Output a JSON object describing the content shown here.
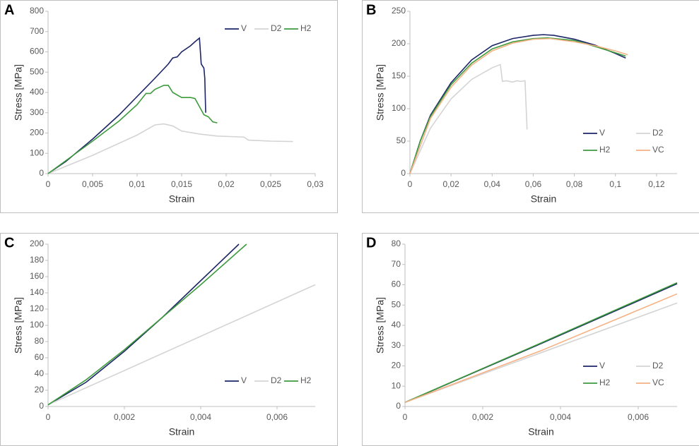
{
  "chart_data": [
    {
      "type": "line",
      "label": "A",
      "xlabel": "Strain",
      "ylabel": "Stress [MPa]",
      "xlim": [
        0,
        0.03
      ],
      "xticks": [
        0,
        {
          "value": 0.005,
          "label": "0,005"
        },
        {
          "value": 0.01,
          "label": "0,01"
        },
        {
          "value": 0.015,
          "label": "0,015"
        },
        {
          "value": 0.02,
          "label": "0,02"
        },
        {
          "value": 0.025,
          "label": "0,025"
        },
        {
          "value": 0.03,
          "label": "0,03"
        }
      ],
      "ylim": [
        0,
        800
      ],
      "yticks": [
        0,
        100,
        200,
        300,
        400,
        500,
        600,
        700,
        800
      ],
      "legend": "upper right",
      "series": [
        {
          "name": "V",
          "color": "#1c2566",
          "x": [
            0,
            0.002,
            0.005,
            0.008,
            0.01,
            0.012,
            0.0135,
            0.014,
            0.0145,
            0.015,
            0.016,
            0.0165,
            0.017,
            0.0172,
            0.0175,
            0.0176,
            0.0177
          ],
          "values": [
            0,
            60,
            170,
            290,
            380,
            470,
            540,
            570,
            575,
            600,
            630,
            650,
            668,
            540,
            520,
            470,
            300
          ]
        },
        {
          "name": "D2",
          "color": "#d4d4d4",
          "x": [
            0,
            0.005,
            0.01,
            0.012,
            0.013,
            0.014,
            0.015,
            0.017,
            0.019,
            0.022,
            0.0225,
            0.025,
            0.0275
          ],
          "values": [
            0,
            90,
            190,
            240,
            245,
            235,
            210,
            195,
            185,
            180,
            165,
            160,
            158
          ]
        },
        {
          "name": "H2",
          "color": "#3d9a3d",
          "x": [
            0,
            0.005,
            0.008,
            0.01,
            0.011,
            0.0115,
            0.012,
            0.013,
            0.0135,
            0.014,
            0.015,
            0.016,
            0.0165,
            0.017,
            0.0175,
            0.018,
            0.0185,
            0.019
          ],
          "values": [
            0,
            160,
            260,
            340,
            395,
            395,
            415,
            435,
            435,
            400,
            375,
            375,
            370,
            330,
            290,
            280,
            255,
            250
          ]
        }
      ]
    },
    {
      "type": "line",
      "label": "B",
      "xlabel": "Strain",
      "ylabel": "Stress [MPa]",
      "xlim": [
        0,
        0.13
      ],
      "xticks": [
        0,
        {
          "value": 0.02,
          "label": "0,02"
        },
        {
          "value": 0.04,
          "label": "0,04"
        },
        {
          "value": 0.06,
          "label": "0,06"
        },
        {
          "value": 0.08,
          "label": "0,08"
        },
        {
          "value": 0.1,
          "label": "0,1"
        },
        {
          "value": 0.12,
          "label": "0,12"
        }
      ],
      "ylim": [
        0,
        250
      ],
      "yticks": [
        0,
        50,
        100,
        150,
        200,
        250
      ],
      "legend": "lower right",
      "series": [
        {
          "name": "V",
          "color": "#1c2566",
          "x": [
            0,
            0.005,
            0.01,
            0.02,
            0.03,
            0.04,
            0.05,
            0.06,
            0.065,
            0.07,
            0.08,
            0.09,
            0.1,
            0.105
          ],
          "values": [
            0,
            50,
            90,
            140,
            175,
            197,
            208,
            213,
            214,
            213,
            207,
            198,
            185,
            178
          ]
        },
        {
          "name": "D2",
          "color": "#d4d4d4",
          "x": [
            0,
            0.01,
            0.02,
            0.03,
            0.04,
            0.044,
            0.045,
            0.047,
            0.05,
            0.052,
            0.054,
            0.056,
            0.057
          ],
          "values": [
            0,
            70,
            115,
            145,
            163,
            168,
            142,
            143,
            141,
            143,
            142,
            143,
            68
          ]
        },
        {
          "name": "H2",
          "color": "#3d9a3d",
          "x": [
            0,
            0.005,
            0.01,
            0.02,
            0.03,
            0.04,
            0.05,
            0.06,
            0.067,
            0.08,
            0.09,
            0.1,
            0.105
          ],
          "values": [
            0,
            50,
            88,
            137,
            170,
            192,
            203,
            208,
            209,
            205,
            196,
            186,
            181
          ]
        },
        {
          "name": "VC",
          "color": "#f5b183",
          "x": [
            0,
            0.01,
            0.02,
            0.03,
            0.04,
            0.05,
            0.06,
            0.068,
            0.08,
            0.09,
            0.1,
            0.106
          ],
          "values": [
            0,
            85,
            133,
            167,
            189,
            201,
            207,
            208,
            203,
            197,
            189,
            183
          ]
        }
      ]
    },
    {
      "type": "line",
      "label": "C",
      "xlabel": "Strain",
      "ylabel": "Stress [MPa]",
      "xlim": [
        0,
        0.007
      ],
      "xticks": [
        0,
        {
          "value": 0.002,
          "label": "0,002"
        },
        {
          "value": 0.004,
          "label": "0,004"
        },
        {
          "value": 0.006,
          "label": "0,006"
        }
      ],
      "ylim": [
        0,
        200
      ],
      "yticks": [
        0,
        20,
        40,
        60,
        80,
        100,
        120,
        140,
        160,
        180,
        200
      ],
      "legend": "lower right",
      "series": [
        {
          "name": "V",
          "color": "#1c2566",
          "x": [
            0,
            0.001,
            0.002,
            0.003,
            0.004,
            0.005
          ],
          "values": [
            2,
            30,
            68,
            110,
            155,
            200
          ]
        },
        {
          "name": "D2",
          "color": "#d4d4d4",
          "x": [
            0,
            0.007
          ],
          "values": [
            2,
            150
          ]
        },
        {
          "name": "H2",
          "color": "#3d9a3d",
          "x": [
            0,
            0.001,
            0.002,
            0.003,
            0.004,
            0.0052
          ],
          "values": [
            2,
            33,
            70,
            110,
            150,
            200
          ]
        }
      ]
    },
    {
      "type": "line",
      "label": "D",
      "xlabel": "Strain",
      "ylabel": "Stress [MPa]",
      "xlim": [
        0,
        0.007
      ],
      "xticks": [
        0,
        {
          "value": 0.002,
          "label": "0,002"
        },
        {
          "value": 0.004,
          "label": "0,004"
        },
        {
          "value": 0.006,
          "label": "0,006"
        }
      ],
      "ylim": [
        0,
        80
      ],
      "yticks": [
        0,
        10,
        20,
        30,
        40,
        50,
        60,
        70,
        80
      ],
      "legend": "lower right",
      "series": [
        {
          "name": "V",
          "color": "#1c2566",
          "x": [
            0,
            0.0035,
            0.007
          ],
          "values": [
            2,
            31,
            60.5
          ]
        },
        {
          "name": "D2",
          "color": "#d4d4d4",
          "x": [
            0,
            0.0035,
            0.007
          ],
          "values": [
            2,
            26.5,
            51
          ]
        },
        {
          "name": "H2",
          "color": "#3d9a3d",
          "x": [
            0,
            0.0035,
            0.007
          ],
          "values": [
            2,
            31.3,
            61
          ]
        },
        {
          "name": "VC",
          "color": "#f5b183",
          "x": [
            0,
            0.0035,
            0.007
          ],
          "values": [
            2,
            27.5,
            55.5
          ]
        }
      ]
    }
  ]
}
